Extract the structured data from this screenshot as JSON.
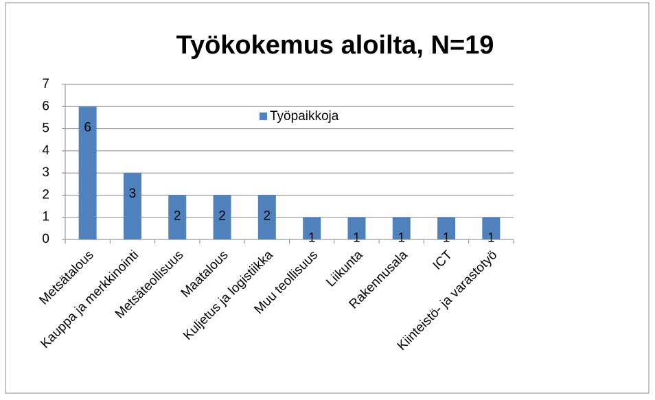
{
  "chart_data": {
    "type": "bar",
    "title": "Työkokemus aloilta, N=19",
    "categories": [
      "Metsätalous",
      "Kauppa ja merkkinointi",
      "Metsäteollisuus",
      "Maatalous",
      "Kuljetus ja logistiikka",
      "Muu teollisuus",
      "Liikunta",
      "Rakennusala",
      "ICT",
      "Kiinteistö- ja varastotyö"
    ],
    "series": [
      {
        "name": "Työpaikkoja",
        "color": "#4f81bd",
        "values": [
          6,
          3,
          2,
          2,
          2,
          1,
          1,
          1,
          1,
          1
        ]
      }
    ],
    "ylim": [
      0,
      7
    ],
    "yticks": [
      0,
      1,
      2,
      3,
      4,
      5,
      6,
      7
    ],
    "grid": true,
    "legend": "top"
  }
}
